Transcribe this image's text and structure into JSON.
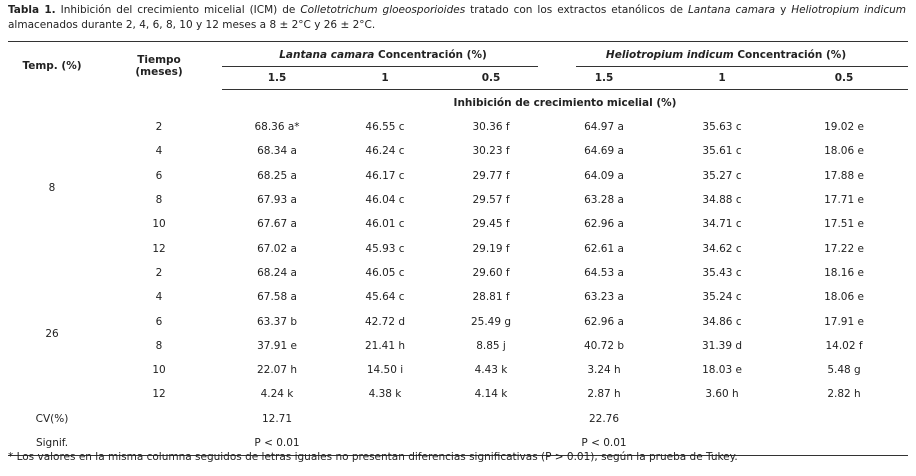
{
  "caption": {
    "label": "Tabla 1.",
    "parts": [
      {
        "text": "Inhibición del crecimiento micelial (ICM) de "
      },
      {
        "text": "Colletotrichum gloeosporioides",
        "italic": true
      },
      {
        "text": " tratado con los extractos etanólicos de "
      },
      {
        "text": "Lantana camara",
        "italic": true
      },
      {
        "text": " y "
      },
      {
        "text": "Heliotropium indicum",
        "italic": true
      },
      {
        "text": " almacenados durante 2, 4, 6, 8, 10 y 12 meses a 8 ± 2°C y 26 ± 2°C."
      }
    ]
  },
  "table": {
    "headers": {
      "temp": "Temp. (%)",
      "time": [
        "Tiempo",
        "(meses)"
      ],
      "groups": [
        {
          "species": "Lantana camara",
          "suffix": "Concentración (%)",
          "concentrations": [
            "1.5",
            "1",
            "0.5"
          ]
        },
        {
          "species": "Heliotropium indicum",
          "suffix": "Concentración (%)",
          "concentrations": [
            "1.5",
            "1",
            "0.5"
          ]
        }
      ],
      "subheading": "Inhibición de crecimiento micelial (%)"
    },
    "groups": [
      {
        "temp": "8",
        "rows": [
          {
            "time": "2",
            "values": [
              "68.36 a*",
              "46.55 c",
              "30.36 f",
              "64.97 a",
              "35.63 c",
              "19.02 e"
            ]
          },
          {
            "time": "4",
            "values": [
              "68.34 a",
              "46.24 c",
              "30.23 f",
              "64.69 a",
              "35.61 c",
              "18.06 e"
            ]
          },
          {
            "time": "6",
            "values": [
              "68.25 a",
              "46.17 c",
              "29.77 f",
              "64.09 a",
              "35.27 c",
              "17.88 e"
            ]
          },
          {
            "time": "8",
            "values": [
              "67.93 a",
              "46.04 c",
              "29.57 f",
              "63.28 a",
              "34.88 c",
              "17.71 e"
            ]
          },
          {
            "time": "10",
            "values": [
              "67.67 a",
              "46.01 c",
              "29.45 f",
              "62.96 a",
              "34.71 c",
              "17.51 e"
            ]
          },
          {
            "time": "12",
            "values": [
              "67.02 a",
              "45.93 c",
              "29.19 f",
              "62.61 a",
              "34.62 c",
              "17.22 e"
            ]
          }
        ]
      },
      {
        "temp": "26",
        "rows": [
          {
            "time": "2",
            "values": [
              "68.24 a",
              "46.05 c",
              "29.60 f",
              "64.53 a",
              "35.43 c",
              "18.16 e"
            ]
          },
          {
            "time": "4",
            "values": [
              "67.58 a",
              "45.64 c",
              "28.81 f",
              "63.23 a",
              "35.24 c",
              "18.06 e"
            ]
          },
          {
            "time": "6",
            "values": [
              "63.37 b",
              "42.72 d",
              "25.49 g",
              "62.96 a",
              "34.86 c",
              "17.91 e"
            ]
          },
          {
            "time": "8",
            "values": [
              "37.91 e",
              "21.41 h",
              "8.85 j",
              "40.72 b",
              "31.39 d",
              "14.02 f"
            ]
          },
          {
            "time": "10",
            "values": [
              "22.07 h",
              "14.50 i",
              "4.43 k",
              "3.24 h",
              "18.03 e",
              "5.48 g"
            ]
          },
          {
            "time": "12",
            "values": [
              "4.24 k",
              "4.38 k",
              "4.14 k",
              "2.87 h",
              "3.60 h",
              "2.82 h"
            ]
          }
        ]
      }
    ],
    "stats": [
      {
        "label": "CV(%)",
        "values": [
          "12.71",
          "22.76"
        ]
      },
      {
        "label": "Signif.",
        "values": [
          "P < 0.01",
          "P < 0.01"
        ]
      }
    ]
  },
  "footnote": "* Los valores en la misma columna seguidos de letras iguales no presentan diferencias significativas (P > 0.01), según la prueba de Tukey."
}
